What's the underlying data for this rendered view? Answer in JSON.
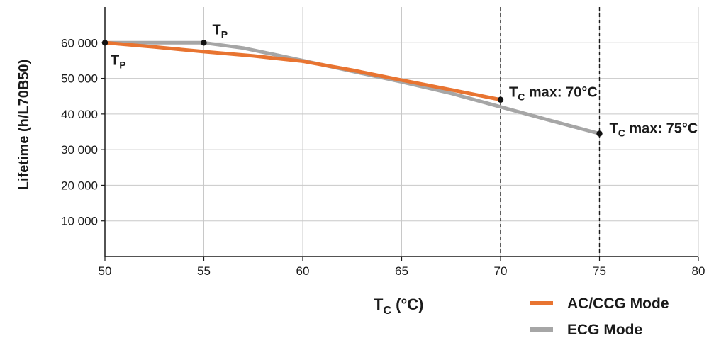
{
  "chart_data": {
    "type": "line",
    "xlabel": {
      "main": "T",
      "sub": "C",
      "rest": " (°C)"
    },
    "ylabel": "Lifetime (h/L70B50)",
    "xlim": [
      50,
      80
    ],
    "ylim": [
      0,
      70000
    ],
    "x_ticks": [
      50,
      55,
      60,
      65,
      70,
      75,
      80
    ],
    "y_ticks": [
      10000,
      20000,
      30000,
      40000,
      50000,
      60000
    ],
    "y_tick_labels": [
      "10 000",
      "20 000",
      "30 000",
      "40 000",
      "50 000",
      "60 000"
    ],
    "grid": true,
    "legend_position": "bottom-right",
    "series": [
      {
        "name": "ECG Mode",
        "color": "#a6a6a6",
        "x": [
          50,
          55,
          57,
          60,
          62.5,
          65,
          67.5,
          70,
          72.5,
          75
        ],
        "y": [
          60000,
          60000,
          58500,
          55000,
          52000,
          49000,
          45800,
          42000,
          38200,
          34500
        ]
      },
      {
        "name": "AC/CCG Mode",
        "color": "#e87431",
        "x": [
          50,
          52.5,
          55,
          57.5,
          60,
          62.5,
          65,
          67.5,
          70
        ],
        "y": [
          60000,
          58800,
          57500,
          56300,
          54800,
          52300,
          49500,
          46800,
          44000
        ]
      }
    ],
    "vlines": [
      70,
      75
    ],
    "points": [
      {
        "x": 50,
        "y": 60000,
        "label_main": "T",
        "label_sub": "P",
        "label_rest": ""
      },
      {
        "x": 55,
        "y": 60000,
        "label_main": "T",
        "label_sub": "P",
        "label_rest": ""
      },
      {
        "x": 70,
        "y": 44000,
        "label_main": "T",
        "label_sub": "C",
        "label_rest": " max: 70°C"
      },
      {
        "x": 75,
        "y": 34500,
        "label_main": "T",
        "label_sub": "C",
        "label_rest": " max: 75°C"
      }
    ]
  }
}
